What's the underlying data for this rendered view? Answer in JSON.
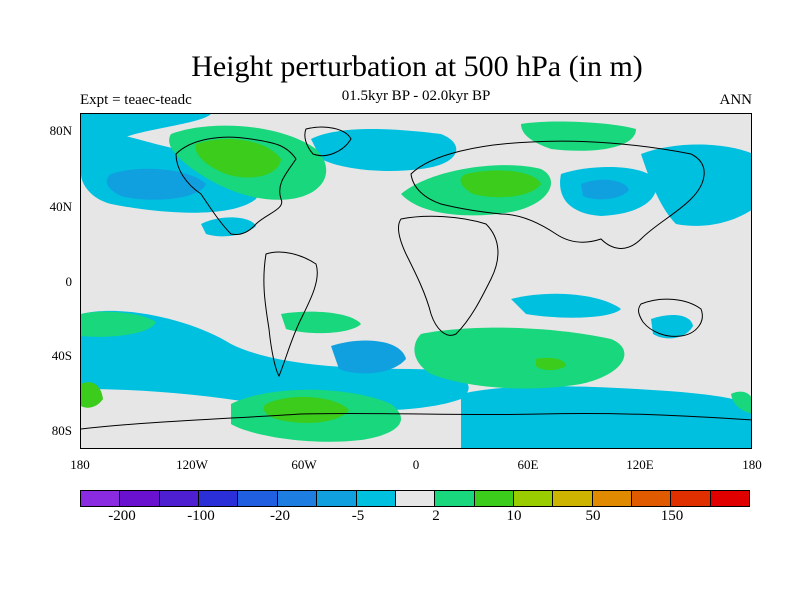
{
  "title": "Height perturbation at 500 hPa (in m)",
  "subtitle": "01.5kyr BP - 02.0kyr BP",
  "left_label": "Expt = teaec-teadc",
  "right_label": "ANN",
  "lat_labels": [
    "80N",
    "40N",
    "0",
    "40S",
    "80S"
  ],
  "lon_labels": [
    "180",
    "120W",
    "60W",
    "0",
    "60E",
    "120E",
    "180"
  ],
  "colorbar": {
    "colors": [
      "#8a2be2",
      "#6a11cf",
      "#4d1fd0",
      "#2a2fd8",
      "#1f5fe0",
      "#1e7de0",
      "#10a0e0",
      "#00c0e0",
      "#e6e6e6",
      "#19d77c",
      "#3ccc1c",
      "#9acd00",
      "#cdb400",
      "#e08a00",
      "#e05a00",
      "#e03000",
      "#e00000"
    ],
    "labels": [
      "-200",
      "-100",
      "-20",
      "-5",
      "2",
      "10",
      "50",
      "150"
    ]
  }
}
